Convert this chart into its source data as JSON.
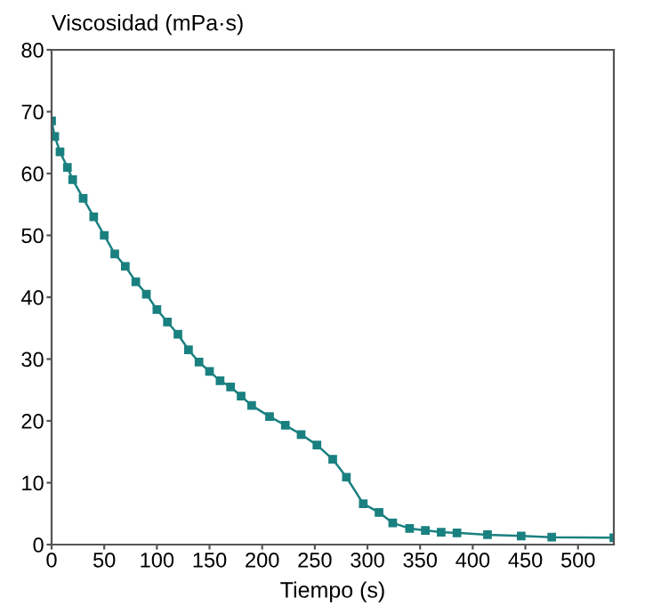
{
  "chart_data": {
    "type": "line",
    "ylabel": "Viscosidad (mPa·s)",
    "xlabel": "Tiempo (s)",
    "x": [
      0,
      3,
      8,
      15,
      20,
      30,
      40,
      50,
      60,
      70,
      80,
      90,
      100,
      110,
      120,
      130,
      140,
      150,
      160,
      170,
      180,
      190,
      207,
      222,
      237,
      252,
      267,
      280,
      296,
      311,
      324,
      340,
      355,
      370,
      385,
      414,
      446,
      475,
      534
    ],
    "series": [
      {
        "color": "#1a8080",
        "values": [
          68.5,
          66,
          63.5,
          61,
          59,
          56,
          53,
          50,
          47,
          45,
          42.5,
          40.5,
          38,
          36,
          34,
          31.5,
          29.5,
          28,
          26.5,
          25.5,
          24,
          22.5,
          20.7,
          19.3,
          17.8,
          16.1,
          13.8,
          10.9,
          6.6,
          5.2,
          3.5,
          2.6,
          2.3,
          2.0,
          1.9,
          1.6,
          1.4,
          1.2,
          1.1
        ]
      }
    ],
    "xlim": [
      0,
      534
    ],
    "xticks": [
      0,
      50,
      100,
      150,
      200,
      250,
      300,
      350,
      400,
      450,
      500
    ],
    "ylim": [
      0,
      80
    ],
    "yticks": [
      0,
      10,
      20,
      30,
      40,
      50,
      60,
      70,
      80
    ],
    "grid": false,
    "legend": false,
    "marker": "square",
    "line_style": "solid"
  }
}
